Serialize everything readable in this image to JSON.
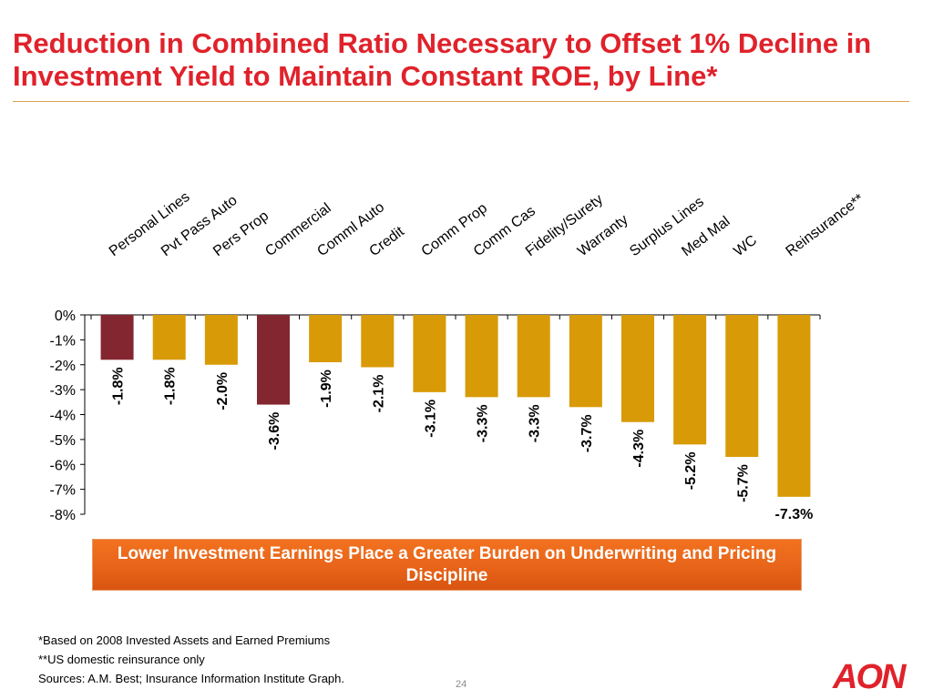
{
  "slide": {
    "title": "Reduction in Combined Ratio Necessary to Offset 1% Decline in Investment Yield to Maintain Constant ROE, by Line*",
    "callout": "Lower Investment Earnings Place a Greater Burden on Underwriting and Pricing Discipline",
    "footnotes": [
      "*Based on 2008 Invested Assets and Earned Premiums",
      "**US domestic reinsurance only",
      "Sources: A.M. Best; Insurance Information Institute Graph."
    ],
    "page_number": "24",
    "logo_text": "AON"
  },
  "colors": {
    "title": "#e0222b",
    "highlight_bar": "#842630",
    "bar": "#d89a06",
    "callout": "#e8641a",
    "logo": "#e0222b"
  },
  "chart_data": {
    "type": "bar",
    "title": "",
    "xlabel": "",
    "ylabel": "",
    "categories": [
      "Personal Lines",
      "Pvt Pass Auto",
      "Pers Prop",
      "Commercial",
      "Comml Auto",
      "Credit",
      "Comm Prop",
      "Comm Cas",
      "Fidelity/Surety",
      "Warranty",
      "Surplus Lines",
      "Med Mal",
      "WC",
      "Reinsurance**"
    ],
    "values": [
      -1.8,
      -1.8,
      -2.0,
      -3.6,
      -1.9,
      -2.1,
      -3.1,
      -3.3,
      -3.3,
      -3.7,
      -4.3,
      -5.2,
      -5.7,
      -7.3
    ],
    "data_labels": [
      "-1.8%",
      "-1.8%",
      "-2.0%",
      "-3.6%",
      "-1.9%",
      "-2.1%",
      "-3.1%",
      "-3.3%",
      "-3.3%",
      "-3.7%",
      "-4.3%",
      "-5.2%",
      "-5.7%",
      "-7.3%"
    ],
    "highlighted": [
      "Personal Lines",
      "Commercial"
    ],
    "ylim": [
      -8,
      0
    ],
    "yticks": [
      "0%",
      "-1%",
      "-2%",
      "-3%",
      "-4%",
      "-5%",
      "-6%",
      "-7%",
      "-8%"
    ],
    "x_axis_position": "top",
    "grid": false,
    "legend": "none"
  }
}
